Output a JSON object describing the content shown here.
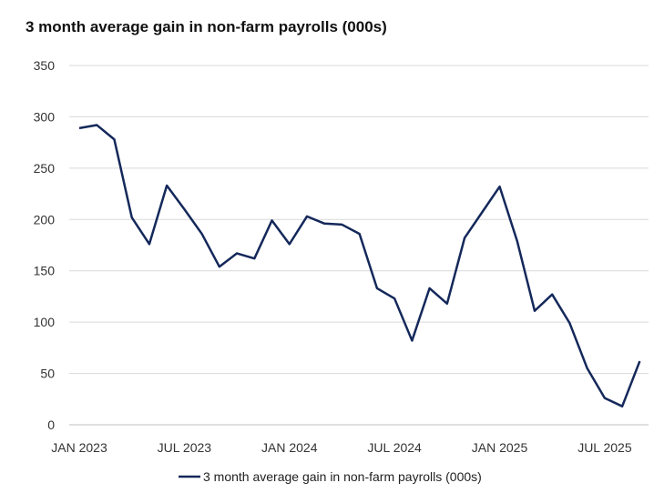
{
  "chart_data": {
    "type": "line",
    "title": "3 month average gain in non-farm payrolls (000s)",
    "xlabel": "",
    "ylabel": "",
    "ylim": [
      0,
      350
    ],
    "yticks": [
      0,
      50,
      100,
      150,
      200,
      250,
      300,
      350
    ],
    "xtick_labels": [
      "JAN 2023",
      "JUL 2023",
      "JAN 2024",
      "JUL 2024",
      "JAN 2025",
      "JUL 2025"
    ],
    "xtick_indices": [
      0,
      6,
      12,
      18,
      24,
      30
    ],
    "grid": "horizontal",
    "legend_position": "bottom",
    "line_color": "#14285a",
    "x": [
      "2023-01",
      "2023-02",
      "2023-03",
      "2023-04",
      "2023-05",
      "2023-06",
      "2023-07",
      "2023-08",
      "2023-09",
      "2023-10",
      "2023-11",
      "2023-12",
      "2024-01",
      "2024-02",
      "2024-03",
      "2024-04",
      "2024-05",
      "2024-06",
      "2024-07",
      "2024-08",
      "2024-09",
      "2024-10",
      "2024-11",
      "2024-12",
      "2025-01",
      "2025-02",
      "2025-03",
      "2025-04",
      "2025-05",
      "2025-06",
      "2025-07",
      "2025-08",
      "2025-09"
    ],
    "series": [
      {
        "name": "3 month average gain in non-farm payrolls (000s)",
        "values": [
          289,
          292,
          278,
          202,
          176,
          233,
          210,
          186,
          154,
          167,
          162,
          199,
          176,
          203,
          196,
          195,
          186,
          133,
          123,
          82,
          133,
          118,
          182,
          207,
          232,
          179,
          111,
          127,
          99,
          55,
          26,
          18,
          62
        ]
      }
    ]
  }
}
